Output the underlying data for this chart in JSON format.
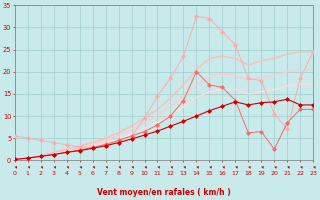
{
  "background_color": "#c8eaea",
  "grid_color": "#a0cccc",
  "xlabel": "Vent moyen/en rafales ( km/h )",
  "xlabel_color": "#cc0000",
  "tick_color": "#cc0000",
  "spine_color": "#888888",
  "xlim": [
    0,
    23
  ],
  "ylim": [
    0,
    35
  ],
  "yticks": [
    0,
    5,
    10,
    15,
    20,
    25,
    30,
    35
  ],
  "xticks": [
    0,
    1,
    2,
    3,
    4,
    5,
    6,
    7,
    8,
    9,
    10,
    11,
    12,
    13,
    14,
    15,
    16,
    17,
    18,
    19,
    20,
    21,
    22,
    23
  ],
  "series": [
    {
      "x": [
        0,
        1,
        2,
        3,
        4,
        5,
        6,
        7,
        8,
        9,
        10,
        11,
        12,
        13,
        14,
        15,
        16,
        17,
        18,
        19,
        20,
        21,
        22,
        23
      ],
      "y": [
        5.5,
        5.0,
        4.5,
        4.0,
        3.5,
        3.0,
        2.8,
        3.2,
        4.5,
        5.5,
        9.5,
        14.5,
        18.5,
        23.5,
        32.5,
        32.0,
        29.0,
        26.0,
        18.5,
        18.0,
        10.5,
        7.0,
        18.5,
        24.5
      ],
      "color": "#ffaaaa",
      "lw": 0.7,
      "marker": "D",
      "ms": 2.0,
      "mfc": "#ffaaaa"
    },
    {
      "x": [
        0,
        1,
        2,
        3,
        4,
        5,
        6,
        7,
        8,
        9,
        10,
        11,
        12,
        13,
        14,
        15,
        16,
        17,
        18,
        19,
        20,
        21,
        22,
        23
      ],
      "y": [
        0.0,
        0.5,
        1.0,
        1.8,
        2.5,
        3.2,
        4.0,
        5.0,
        6.2,
        7.8,
        9.5,
        11.5,
        14.0,
        17.0,
        20.5,
        23.0,
        23.5,
        23.0,
        21.5,
        22.5,
        23.0,
        24.0,
        24.5,
        24.5
      ],
      "color": "#ffbbbb",
      "lw": 1.0,
      "marker": null,
      "ms": 0,
      "mfc": "#ffbbbb"
    },
    {
      "x": [
        0,
        1,
        2,
        3,
        4,
        5,
        6,
        7,
        8,
        9,
        10,
        11,
        12,
        13,
        14,
        15,
        16,
        17,
        18,
        19,
        20,
        21,
        22,
        23
      ],
      "y": [
        0.0,
        0.4,
        0.9,
        1.5,
        2.2,
        2.9,
        3.7,
        4.6,
        5.7,
        7.0,
        8.5,
        10.2,
        12.2,
        14.5,
        17.0,
        19.0,
        19.5,
        19.2,
        18.0,
        18.8,
        19.2,
        20.0,
        20.5,
        20.5
      ],
      "color": "#ffcccc",
      "lw": 1.0,
      "marker": null,
      "ms": 0,
      "mfc": "#ffcccc"
    },
    {
      "x": [
        0,
        1,
        2,
        3,
        4,
        5,
        6,
        7,
        8,
        9,
        10,
        11,
        12,
        13,
        14,
        15,
        16,
        17,
        18,
        19,
        20,
        21,
        22,
        23
      ],
      "y": [
        0.0,
        0.3,
        0.7,
        1.2,
        1.8,
        2.4,
        3.1,
        3.9,
        4.8,
        5.9,
        7.2,
        8.6,
        10.2,
        12.0,
        14.2,
        15.5,
        16.0,
        16.0,
        15.0,
        15.5,
        16.0,
        16.8,
        17.2,
        17.2
      ],
      "color": "#ffdddd",
      "lw": 1.0,
      "marker": null,
      "ms": 0,
      "mfc": "#ffdddd"
    },
    {
      "x": [
        0,
        1,
        2,
        3,
        4,
        5,
        6,
        7,
        8,
        9,
        10,
        11,
        12,
        13,
        14,
        15,
        16,
        17,
        18,
        19,
        20,
        21,
        22,
        23
      ],
      "y": [
        0.2,
        0.5,
        0.9,
        1.3,
        1.8,
        2.3,
        2.9,
        3.6,
        4.5,
        5.5,
        6.5,
        8.0,
        10.0,
        13.5,
        20.0,
        17.0,
        16.5,
        13.5,
        6.2,
        6.5,
        2.5,
        8.5,
        11.5,
        11.5
      ],
      "color": "#ff6666",
      "lw": 0.7,
      "marker": "D",
      "ms": 2.0,
      "mfc": "#ff6666"
    },
    {
      "x": [
        0,
        1,
        2,
        3,
        4,
        5,
        6,
        7,
        8,
        9,
        10,
        11,
        12,
        13,
        14,
        15,
        16,
        17,
        18,
        19,
        20,
        21,
        22,
        23
      ],
      "y": [
        0.2,
        0.5,
        0.9,
        1.3,
        1.8,
        2.2,
        2.7,
        3.3,
        4.0,
        4.8,
        5.7,
        6.6,
        7.7,
        8.8,
        10.0,
        11.2,
        12.2,
        13.2,
        12.5,
        13.0,
        13.2,
        13.8,
        12.5,
        12.5
      ],
      "color": "#cc0000",
      "lw": 0.8,
      "marker": "D",
      "ms": 2.0,
      "mfc": "#cc0000"
    }
  ]
}
